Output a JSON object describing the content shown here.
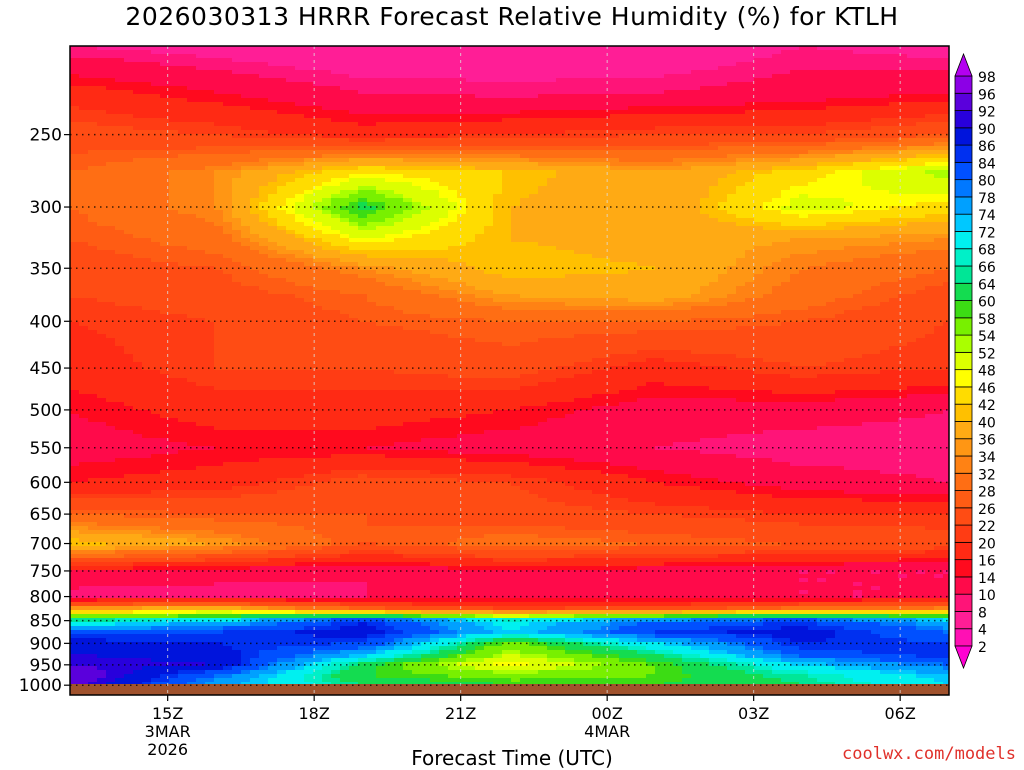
{
  "title": "2026030313 HRRR Forecast Relative Humidity (%) for KTLH",
  "credit": "coolwx.com/models",
  "chart_data": {
    "type": "heatmap",
    "title": "2026030313 HRRR Forecast Relative Humidity (%) for KTLH",
    "xlabel": "Forecast Time (UTC)",
    "ylabel": "",
    "y_scale": "log-pressure",
    "y_axis_reversed": true,
    "y_ticks": [
      250,
      300,
      350,
      400,
      450,
      500,
      550,
      600,
      650,
      700,
      750,
      800,
      850,
      900,
      950,
      1000
    ],
    "x_ticks": [
      {
        "hour": "2026-03-03T15:00Z",
        "label": [
          "15Z",
          "3MAR",
          "2026"
        ]
      },
      {
        "hour": "2026-03-03T18:00Z",
        "label": [
          "18Z"
        ]
      },
      {
        "hour": "2026-03-03T21:00Z",
        "label": [
          "21Z"
        ]
      },
      {
        "hour": "2026-03-04T00:00Z",
        "label": [
          "00Z",
          "4MAR"
        ]
      },
      {
        "hour": "2026-03-04T03:00Z",
        "label": [
          "03Z"
        ]
      },
      {
        "hour": "2026-03-04T06:00Z",
        "label": [
          "06Z"
        ]
      }
    ],
    "x_range": [
      "2026-03-03T13:00Z",
      "2026-03-04T07:00Z"
    ],
    "y_range": [
      1025,
      200
    ],
    "grid": true,
    "colorbar": {
      "levels": [
        2,
        4,
        8,
        10,
        14,
        16,
        20,
        22,
        26,
        28,
        32,
        34,
        36,
        40,
        42,
        46,
        48,
        52,
        54,
        58,
        60,
        64,
        66,
        68,
        72,
        74,
        78,
        80,
        84,
        86,
        90,
        92,
        96,
        98
      ],
      "colors": [
        "#ff00d2",
        "#ff10b4",
        "#ff1e96",
        "#ff1478",
        "#ff0a4a",
        "#ff0a1e",
        "#ff2a14",
        "#ff3c14",
        "#ff4c14",
        "#ff5c14",
        "#ff6e14",
        "#ff8214",
        "#ff9614",
        "#ffaa14",
        "#ffc000",
        "#ffdc00",
        "#ffff00",
        "#dcff00",
        "#aaff00",
        "#78f000",
        "#3cdc14",
        "#14dc50",
        "#00e696",
        "#00f0c8",
        "#00f0f0",
        "#00c8ff",
        "#00a0ff",
        "#0078ff",
        "#0050ff",
        "#0030f0",
        "#0014dc",
        "#2800dc",
        "#5a00dc",
        "#8c00e6",
        "#b400f0"
      ]
    },
    "surface_color": "#a0522d",
    "x_hours": [
      0,
      3,
      6,
      9,
      12,
      15,
      18
    ],
    "pressure_levels": [
      200,
      225,
      250,
      275,
      300,
      325,
      350,
      375,
      400,
      450,
      500,
      550,
      600,
      650,
      700,
      750,
      800,
      825,
      850,
      875,
      900,
      925,
      950,
      975,
      1000,
      1013
    ],
    "values": [
      [
        8,
        6,
        4,
        5,
        4,
        8,
        6
      ],
      [
        18,
        14,
        10,
        9,
        10,
        12,
        14
      ],
      [
        24,
        22,
        18,
        20,
        22,
        22,
        26
      ],
      [
        28,
        34,
        46,
        42,
        36,
        44,
        54
      ],
      [
        28,
        34,
        62,
        40,
        36,
        50,
        44
      ],
      [
        26,
        30,
        48,
        40,
        38,
        36,
        34
      ],
      [
        24,
        26,
        34,
        42,
        40,
        32,
        28
      ],
      [
        22,
        24,
        28,
        36,
        38,
        30,
        24
      ],
      [
        20,
        22,
        26,
        28,
        28,
        26,
        22
      ],
      [
        18,
        22,
        22,
        24,
        18,
        22,
        20
      ],
      [
        14,
        18,
        18,
        16,
        12,
        12,
        10
      ],
      [
        12,
        14,
        14,
        12,
        10,
        8,
        8
      ],
      [
        16,
        18,
        24,
        22,
        16,
        12,
        10
      ],
      [
        28,
        26,
        26,
        24,
        22,
        20,
        20
      ],
      [
        42,
        36,
        26,
        30,
        28,
        26,
        24
      ],
      [
        14,
        12,
        10,
        14,
        12,
        10,
        10
      ],
      [
        8,
        8,
        10,
        12,
        12,
        10,
        10
      ],
      [
        36,
        40,
        28,
        22,
        24,
        30,
        34
      ],
      [
        66,
        72,
        86,
        70,
        80,
        84,
        74
      ],
      [
        82,
        84,
        88,
        72,
        84,
        88,
        80
      ],
      [
        88,
        86,
        84,
        56,
        72,
        86,
        84
      ],
      [
        90,
        88,
        74,
        52,
        64,
        82,
        86
      ],
      [
        92,
        90,
        62,
        46,
        58,
        72,
        80
      ],
      [
        96,
        80,
        60,
        56,
        58,
        66,
        74
      ],
      [
        94,
        76,
        64,
        60,
        60,
        64,
        72
      ],
      [
        90,
        74,
        64,
        62,
        62,
        66,
        70
      ]
    ]
  }
}
